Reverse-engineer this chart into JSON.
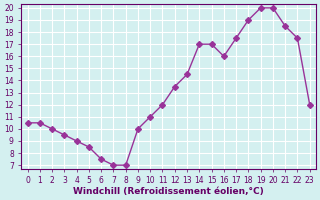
{
  "x": [
    0,
    1,
    2,
    3,
    4,
    5,
    6,
    7,
    8,
    9,
    10,
    11,
    12,
    13,
    14,
    15,
    16,
    17,
    18,
    19,
    20,
    21,
    22,
    23
  ],
  "y": [
    10.5,
    10.5,
    10.0,
    9.5,
    9.0,
    8.5,
    7.5,
    7.0,
    7.0,
    10.0,
    11.0,
    12.0,
    13.5,
    14.5,
    17.0,
    17.0,
    16.0,
    17.5,
    19.0,
    20.0,
    20.0,
    18.5,
    17.5,
    12.0
  ],
  "line_color": "#993399",
  "marker": "D",
  "marker_size": 3,
  "xlabel": "Windchill (Refroidissement éolien,°C)",
  "xlim": [
    -0.5,
    23.5
  ],
  "ylim": [
    6.7,
    20.3
  ],
  "yticks": [
    7,
    8,
    9,
    10,
    11,
    12,
    13,
    14,
    15,
    16,
    17,
    18,
    19,
    20
  ],
  "xticks": [
    0,
    1,
    2,
    3,
    4,
    5,
    6,
    7,
    8,
    9,
    10,
    11,
    12,
    13,
    14,
    15,
    16,
    17,
    18,
    19,
    20,
    21,
    22,
    23
  ],
  "bg_color": "#d4f0f0",
  "grid_color": "#ffffff",
  "label_color": "#660066",
  "tick_color": "#660066",
  "label_fontsize": 6.5,
  "tick_fontsize": 5.5
}
